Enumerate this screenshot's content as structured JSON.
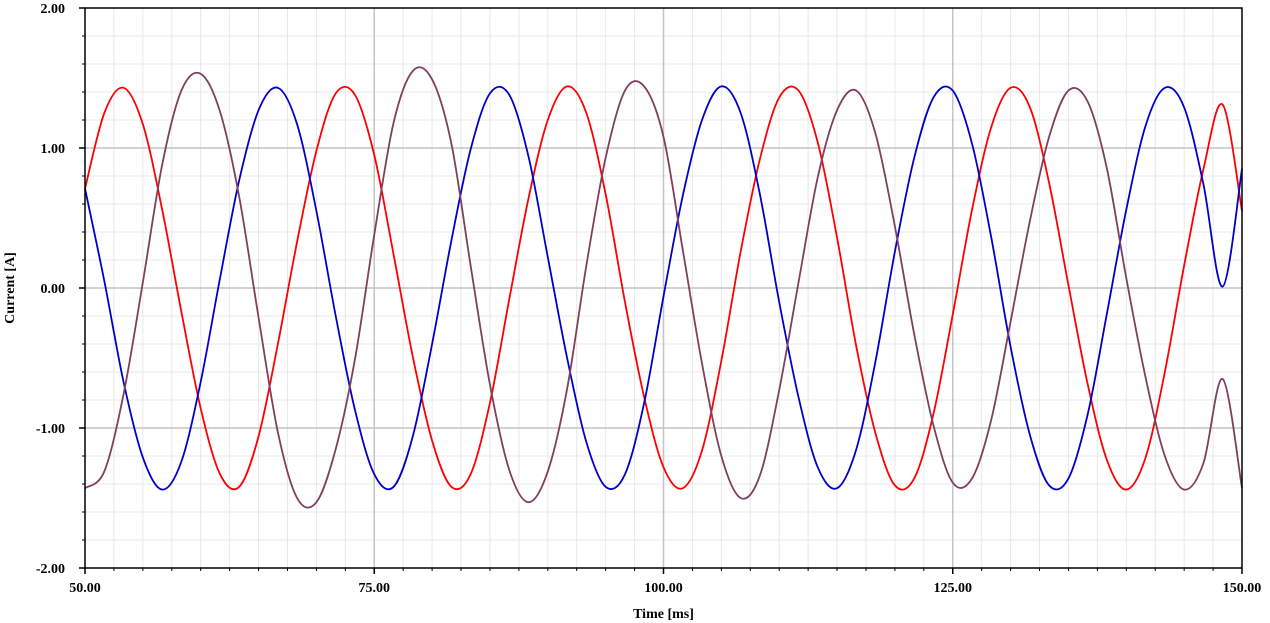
{
  "chart_data": {
    "type": "line",
    "xlabel": "Time [ms]",
    "ylabel": "Current [A]",
    "xlim": [
      50,
      150
    ],
    "ylim": [
      -2,
      2
    ],
    "x_ticks": [
      50,
      75,
      100,
      125,
      150
    ],
    "x_tick_labels": [
      "50.00",
      "75.00",
      "100.00",
      "125.00",
      "150.00"
    ],
    "y_ticks": [
      2,
      1,
      0,
      -1,
      -2
    ],
    "y_tick_labels": [
      "2.00",
      "1.00",
      "0.00",
      "-1.00",
      "-2.00"
    ],
    "grid": true,
    "legend": "none",
    "series": [
      {
        "color": "#ff0000",
        "x": [
          50.0,
          51.67,
          53.33,
          55.0,
          56.67,
          58.33,
          60.0,
          61.67,
          63.33,
          65.0,
          66.67,
          68.33,
          70.0,
          71.67,
          73.33,
          75.0,
          76.67,
          78.33,
          80.0,
          81.67,
          83.33,
          85.0,
          86.67,
          88.33,
          90.0,
          91.67,
          93.33,
          95.0,
          96.67,
          98.33,
          100.0,
          101.67,
          103.33,
          105.0,
          106.67,
          108.33,
          110.0,
          111.67,
          113.33,
          115.0,
          116.67,
          118.33,
          120.0,
          121.67,
          123.33,
          125.0,
          126.67,
          128.33,
          130.0,
          131.67,
          133.33,
          135.0,
          136.67,
          138.33,
          140.0,
          141.67,
          143.33,
          145.0,
          146.67,
          148.33,
          150.0
        ],
        "values": [
          0.71,
          1.25,
          1.43,
          1.17,
          0.56,
          -0.17,
          -0.86,
          -1.33,
          -1.42,
          -1.06,
          -0.4,
          0.33,
          0.98,
          1.39,
          1.38,
          0.95,
          0.24,
          -0.49,
          -1.09,
          -1.42,
          -1.33,
          -0.82,
          -0.08,
          0.64,
          1.2,
          1.44,
          1.25,
          0.67,
          -0.1,
          -0.78,
          -1.28,
          -1.43,
          -1.16,
          -0.52,
          0.26,
          0.92,
          1.36,
          1.41,
          1.04,
          0.36,
          -0.42,
          -1.04,
          -1.41,
          -1.36,
          -0.9,
          -0.19,
          0.56,
          1.15,
          1.43,
          1.29,
          0.75,
          0.02,
          -0.69,
          -1.23,
          -1.44,
          -1.21,
          -0.6,
          0.16,
          0.85,
          1.31,
          0.55
        ]
      },
      {
        "color": "#0000cc",
        "x": [
          50.0,
          51.67,
          53.33,
          55.0,
          56.67,
          58.33,
          60.0,
          61.67,
          63.33,
          65.0,
          66.67,
          68.33,
          70.0,
          71.67,
          73.33,
          75.0,
          76.67,
          78.33,
          80.0,
          81.67,
          83.33,
          85.0,
          86.67,
          88.33,
          90.0,
          91.67,
          93.33,
          95.0,
          96.67,
          98.33,
          100.0,
          101.67,
          103.33,
          105.0,
          106.67,
          108.33,
          110.0,
          111.67,
          113.33,
          115.0,
          116.67,
          118.33,
          120.0,
          121.67,
          123.33,
          125.0,
          126.67,
          128.33,
          130.0,
          131.67,
          133.33,
          135.0,
          136.67,
          138.33,
          140.0,
          141.67,
          143.33,
          145.0,
          146.67,
          148.33,
          150.0
        ],
        "values": [
          0.71,
          0.05,
          -0.67,
          -1.21,
          -1.44,
          -1.24,
          -0.67,
          0.07,
          0.77,
          1.27,
          1.43,
          1.17,
          0.55,
          -0.2,
          -0.87,
          -1.33,
          -1.42,
          -1.06,
          -0.4,
          0.34,
          0.99,
          1.39,
          1.38,
          0.94,
          0.22,
          -0.5,
          -1.1,
          -1.42,
          -1.33,
          -0.82,
          -0.06,
          0.66,
          1.2,
          1.44,
          1.25,
          0.67,
          -0.1,
          -0.78,
          -1.28,
          -1.43,
          -1.15,
          -0.52,
          0.26,
          0.93,
          1.36,
          1.41,
          1.03,
          0.36,
          -0.42,
          -1.05,
          -1.41,
          -1.36,
          -0.9,
          -0.18,
          0.56,
          1.16,
          1.43,
          1.29,
          0.74,
          0.01,
          0.85
        ]
      },
      {
        "color": "#7f3f5f",
        "x": [
          50.0,
          51.67,
          53.33,
          55.0,
          56.67,
          58.33,
          60.0,
          61.67,
          63.33,
          65.0,
          66.67,
          68.33,
          70.0,
          71.67,
          73.33,
          75.0,
          76.67,
          78.33,
          80.0,
          81.67,
          83.33,
          85.0,
          86.67,
          88.33,
          90.0,
          91.67,
          93.33,
          95.0,
          96.67,
          98.33,
          100.0,
          101.67,
          103.33,
          105.0,
          106.67,
          108.33,
          110.0,
          111.67,
          113.33,
          115.0,
          116.67,
          118.33,
          120.0,
          121.67,
          123.33,
          125.0,
          126.67,
          128.33,
          130.0,
          131.67,
          133.33,
          135.0,
          136.67,
          138.33,
          140.0,
          141.67,
          143.33,
          145.0,
          146.67,
          148.33,
          150.0
        ],
        "values": [
          -1.43,
          -1.31,
          -0.76,
          0.04,
          0.88,
          1.41,
          1.53,
          1.26,
          0.65,
          -0.21,
          -1.03,
          -1.5,
          -1.53,
          -1.15,
          -0.51,
          0.38,
          1.18,
          1.55,
          1.49,
          1.03,
          0.16,
          -0.69,
          -1.3,
          -1.53,
          -1.31,
          -0.72,
          0.16,
          0.93,
          1.41,
          1.44,
          1.08,
          0.27,
          -0.54,
          -1.2,
          -1.5,
          -1.34,
          -0.73,
          0.04,
          0.79,
          1.27,
          1.41,
          1.1,
          0.44,
          -0.33,
          -0.98,
          -1.39,
          -1.36,
          -0.94,
          -0.24,
          0.48,
          1.08,
          1.41,
          1.33,
          0.85,
          0.07,
          -0.64,
          -1.2,
          -1.44,
          -1.25,
          -0.65,
          -1.43
        ]
      }
    ]
  }
}
